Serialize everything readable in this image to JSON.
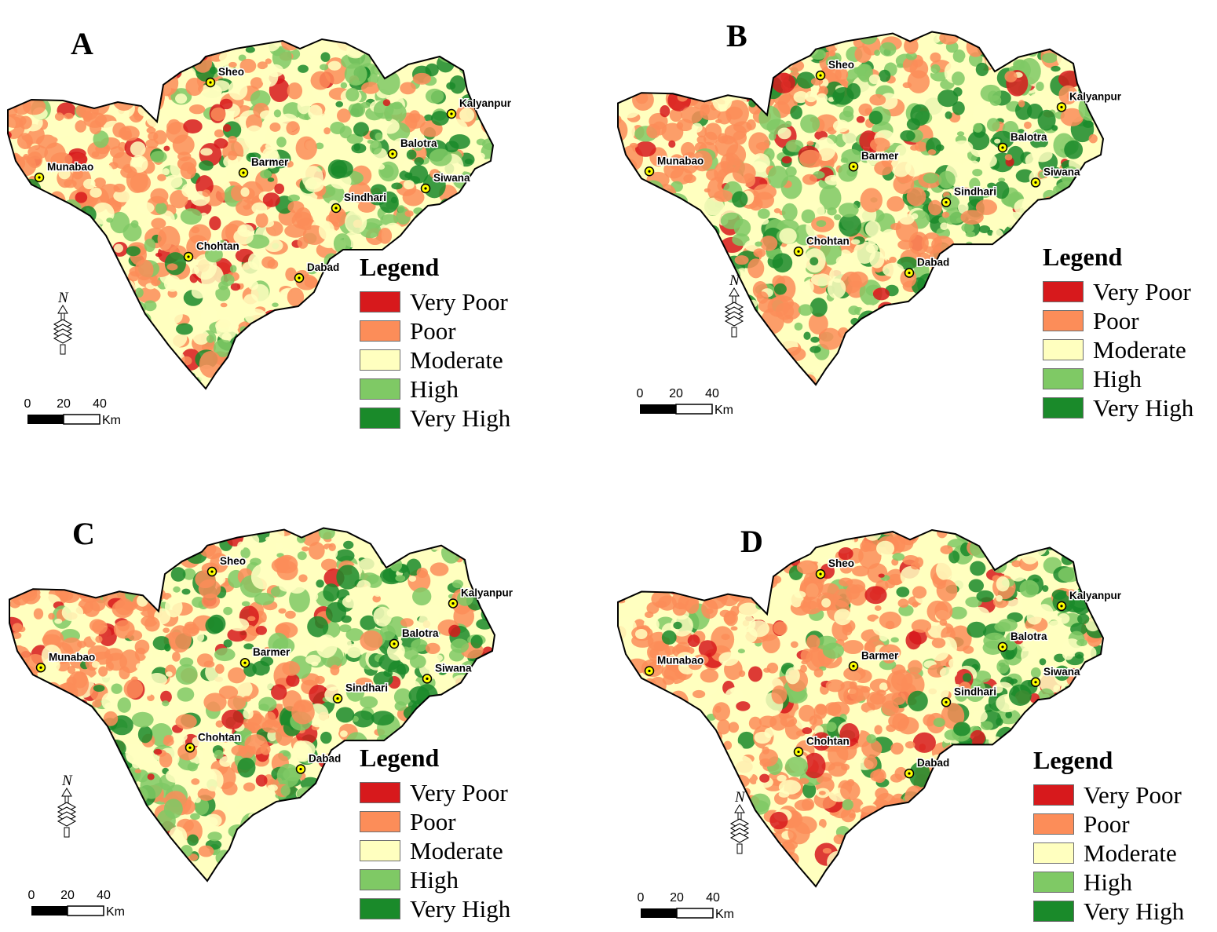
{
  "panels": [
    {
      "label": "A",
      "weights": [
        0.1,
        0.34,
        0.3,
        0.16,
        0.1
      ],
      "east_green": true
    },
    {
      "label": "B",
      "weights": [
        0.05,
        0.27,
        0.26,
        0.26,
        0.16
      ],
      "east_green": true
    },
    {
      "label": "C",
      "weights": [
        0.06,
        0.3,
        0.32,
        0.2,
        0.12
      ],
      "east_green": true
    },
    {
      "label": "D",
      "weights": [
        0.06,
        0.56,
        0.24,
        0.09,
        0.05
      ],
      "east_green": true
    }
  ],
  "legend": {
    "title": "Legend",
    "items": [
      {
        "label": "Very Poor",
        "color": "#d7191c"
      },
      {
        "label": "Poor",
        "color": "#fc8d59"
      },
      {
        "label": "Moderate",
        "color": "#ffffbf"
      },
      {
        "label": "High",
        "color": "#7fc965"
      },
      {
        "label": "Very High",
        "color": "#1a8a2a"
      }
    ]
  },
  "places": [
    "Sheo",
    "Kalyanpur",
    "Munabao",
    "Balotra",
    "Barmer",
    "Siwana",
    "Sindhari",
    "Chohtan",
    "Dabad"
  ],
  "scale_bar": {
    "ticks": [
      "0",
      "20",
      "40"
    ],
    "unit": "Km"
  },
  "north_arrow": {
    "label": "N"
  }
}
